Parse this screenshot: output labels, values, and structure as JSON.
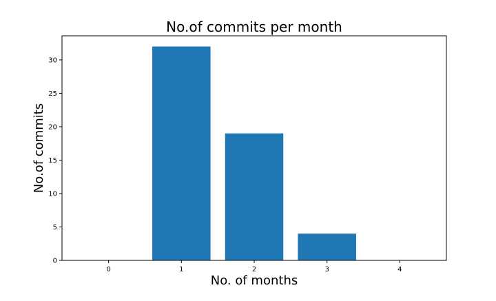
{
  "chart_data": {
    "type": "bar",
    "title": "No.of commits per month",
    "xlabel": "No. of months",
    "ylabel": "No.of commits",
    "categories": [
      0,
      1,
      2,
      3,
      4
    ],
    "values": [
      0,
      32,
      19,
      4,
      0
    ],
    "xticks": [
      "0",
      "1",
      "2",
      "3",
      "4"
    ],
    "yticks": [
      0,
      5,
      10,
      15,
      20,
      25,
      30
    ],
    "ylim": [
      0,
      33.6
    ],
    "xlim": [
      -0.64,
      4.64
    ],
    "bar_color": "#1f77b4",
    "grid": false,
    "legend": "none"
  }
}
